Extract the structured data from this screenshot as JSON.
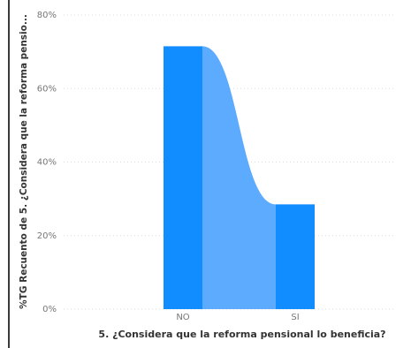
{
  "chart_data": {
    "type": "bar",
    "categories": [
      "NO",
      "SI"
    ],
    "values": [
      71.5,
      28.5
    ],
    "xlabel": "5. ¿Considera que la reforma pensional lo beneficia?",
    "ylabel": "%TG Recuento de 5. ¿Considera que la reforma pensio...",
    "ylim": [
      0,
      80
    ],
    "yticks": [
      "0%",
      "20%",
      "40%",
      "60%",
      "80%"
    ],
    "grid": true,
    "colors": {
      "bar": "#118dff",
      "ribbon": "#5cabff",
      "grid": "#dddddd"
    }
  }
}
